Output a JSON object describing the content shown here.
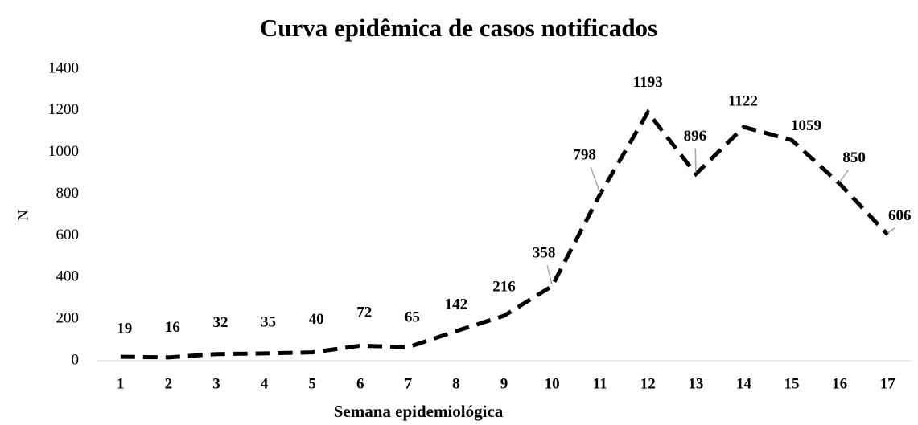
{
  "chart_data": {
    "type": "line",
    "title": "Curva epidêmica de casos notificados",
    "x_label": "Semana epidemiológica",
    "y_label": "N",
    "categories": [
      "1",
      "2",
      "3",
      "4",
      "5",
      "6",
      "7",
      "8",
      "9",
      "10",
      "11",
      "12",
      "13",
      "14",
      "15",
      "16",
      "17"
    ],
    "values": [
      19,
      16,
      32,
      35,
      40,
      72,
      65,
      142,
      216,
      358,
      798,
      1193,
      896,
      1122,
      1059,
      850,
      606
    ],
    "color": "#000000",
    "ylim": [
      0,
      1400
    ],
    "yticks": [
      0,
      200,
      400,
      600,
      800,
      1000,
      1200,
      1400
    ],
    "grid": false
  }
}
